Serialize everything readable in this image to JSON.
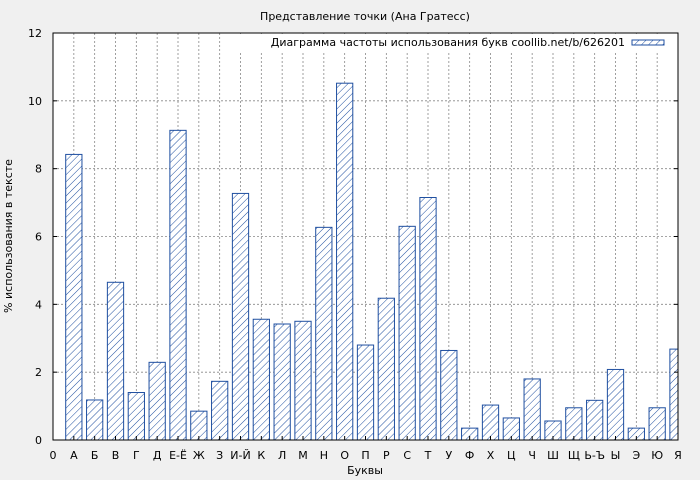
{
  "chart_data": {
    "type": "bar",
    "title": "Представление точки (Ана Гратесс)",
    "xlabel": "Буквы",
    "ylabel": "% использования в тексте",
    "ylim": [
      0,
      12
    ],
    "yticks": [
      0,
      2,
      4,
      6,
      8,
      10,
      12
    ],
    "grid": true,
    "legend_position": "top-right",
    "x_origin_label": "0",
    "categories": [
      "А",
      "Б",
      "В",
      "Г",
      "Д",
      "Е-Ё",
      "Ж",
      "З",
      "И-Й",
      "К",
      "Л",
      "М",
      "Н",
      "О",
      "П",
      "Р",
      "С",
      "Т",
      "У",
      "Ф",
      "Х",
      "Ц",
      "Ч",
      "Ш",
      "Щ",
      "Ь-Ъ",
      "Ы",
      "Э",
      "Ю",
      "Я"
    ],
    "series": [
      {
        "name": "Диаграмма частоты использования букв coollib.net/b/626201",
        "color": "#1f4fa0",
        "hatch": "diagonal",
        "values": [
          8.42,
          1.18,
          4.65,
          1.4,
          2.29,
          9.13,
          0.85,
          1.73,
          7.27,
          3.56,
          3.42,
          3.5,
          6.27,
          10.52,
          2.8,
          4.18,
          6.3,
          7.15,
          2.64,
          0.35,
          1.03,
          0.65,
          1.8,
          0.56,
          0.95,
          1.17,
          2.08,
          0.35,
          0.95,
          2.68
        ]
      }
    ]
  }
}
